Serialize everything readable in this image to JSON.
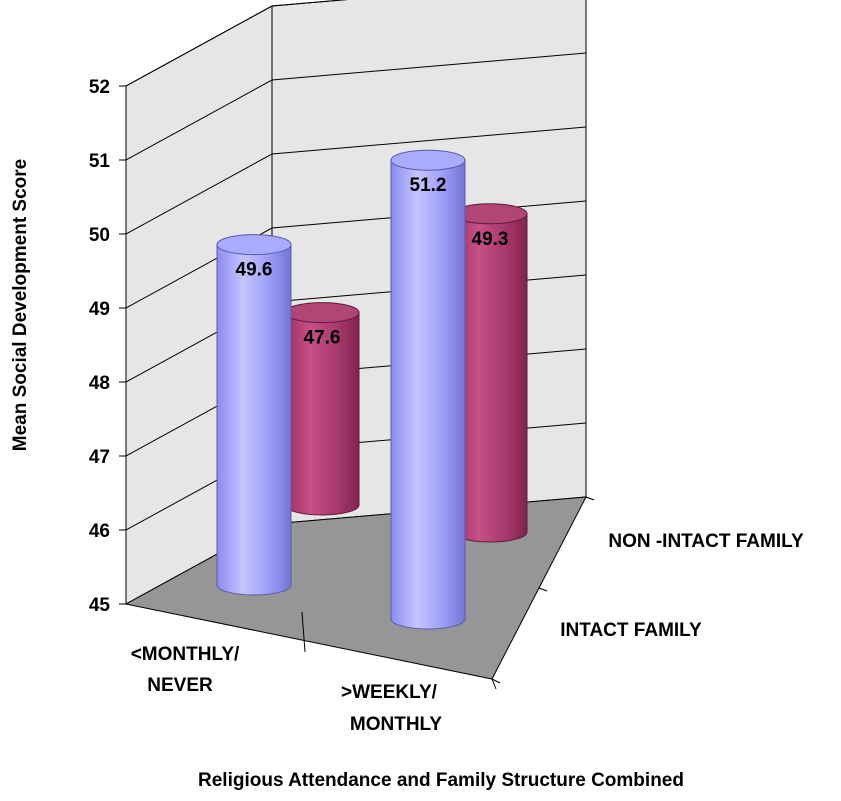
{
  "chart_data": {
    "type": "bar",
    "style": "3d-cylinder",
    "xlabel": "Religious Attendance and Family Structure Combined",
    "ylabel": "Mean Social Development Score",
    "ylim": [
      45,
      52
    ],
    "yticks": [
      "45",
      "46",
      "47",
      "48",
      "49",
      "50",
      "51",
      "52"
    ],
    "grid": true,
    "categories": [
      [
        "<MONTHLY/",
        "NEVER"
      ],
      [
        ">WEEKLY/",
        "MONTHLY"
      ]
    ],
    "series": [
      {
        "name": "INTACT FAMILY",
        "color": "#9999ff",
        "values": [
          49.6,
          51.2
        ],
        "labels": [
          "49.6",
          "51.2"
        ]
      },
      {
        "name": "NON -INTACT FAMILY",
        "color": "#993366",
        "values": [
          47.6,
          49.3
        ],
        "labels": [
          "47.6",
          "49.3"
        ]
      }
    ],
    "walls_color": "#e6e6e6",
    "floor_color": "#969696"
  }
}
